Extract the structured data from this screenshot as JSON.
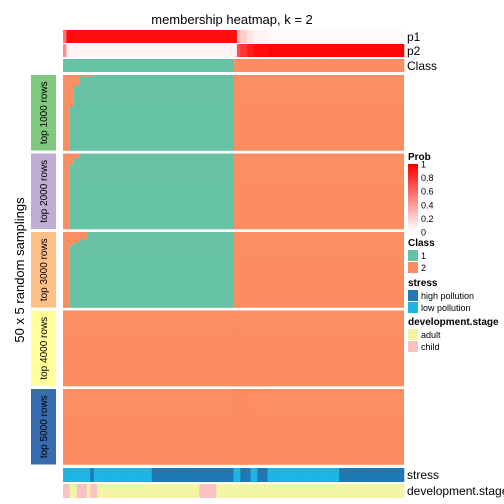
{
  "chart_data": {
    "type": "heatmap",
    "title": "membership heatmap, k = 2",
    "ylabel": "50 x 5 random samplings",
    "row_groups": [
      {
        "label": "top 1000 rows",
        "color": "#7FC97F",
        "switch": [
          0.09,
          0.05,
          0.05,
          0.05,
          0.05,
          0.05,
          0.05,
          0.03,
          0.03,
          0.03,
          0.03,
          0.03,
          0.03,
          0.03,
          0.03,
          0.03,
          0.03,
          0.03,
          0.03,
          0.03,
          0.03,
          0.02,
          0.02,
          0.02,
          0.02,
          0.02,
          0.02,
          0.02,
          0.02,
          0.02,
          0.02,
          0.02,
          0.02,
          0.02,
          0.02,
          0.02,
          0.02,
          0.02,
          0.02,
          0.02,
          0.02,
          0.02,
          0.02,
          0.02,
          0.02,
          0.02,
          0.02,
          0.02,
          0.02,
          0.02
        ]
      },
      {
        "label": "top 2000 rows",
        "color": "#BEAED4",
        "switch": [
          0.05,
          0.05,
          0.05,
          0.03,
          0.03,
          0.03,
          0.03,
          0.02,
          0.02,
          0.02,
          0.02,
          0.02,
          0.02,
          0.02,
          0.02,
          0.02,
          0.02,
          0.02,
          0.02,
          0.02,
          0.02,
          0.02,
          0.02,
          0.02,
          0.02,
          0.02,
          0.02,
          0.02,
          0.02,
          0.02,
          0.02,
          0.02,
          0.02,
          0.02,
          0.02,
          0.02,
          0.02,
          0.02,
          0.02,
          0.02,
          0.02,
          0.02,
          0.02,
          0.02,
          0.02,
          0.02,
          0.02,
          0.02,
          0.02,
          0.02
        ]
      },
      {
        "label": "top 3000 rows",
        "color": "#FDC086",
        "switch": [
          0.07,
          0.07,
          0.07,
          0.07,
          0.07,
          0.05,
          0.05,
          0.03,
          0.03,
          0.02,
          0.02,
          0.02,
          0.02,
          0.02,
          0.02,
          0.02,
          0.02,
          0.02,
          0.02,
          0.02,
          0.02,
          0.02,
          0.02,
          0.02,
          0.02,
          0.02,
          0.02,
          0.02,
          0.02,
          0.02,
          0.02,
          0.02,
          0.02,
          0.02,
          0.02,
          0.02,
          0.02,
          0.02,
          0.02,
          0.02,
          0.02,
          0.02,
          0.02,
          0.02,
          0.02,
          0.02,
          0.02,
          0.02,
          0.02,
          0.02
        ]
      },
      {
        "label": "top 4000 rows",
        "color": "#FFFF99",
        "switch": [
          0.5,
          0.5,
          0.5,
          0.5,
          0.5,
          0.5,
          0.5,
          0.51,
          0.51,
          0.51,
          0.51,
          0.51,
          0.51,
          0.51,
          0.51,
          0.51,
          0.51,
          0.51,
          0.51,
          0.51,
          0.51,
          0.51,
          0.51,
          0.51,
          0.53,
          0.53,
          0.53,
          0.53,
          0.53,
          0.53,
          0.53,
          0.53,
          0.53,
          0.53,
          0.55,
          0.55,
          0.55,
          0.55,
          0.55,
          0.55,
          0.55,
          0.55,
          0.55,
          0.57,
          0.57,
          0.57,
          0.57,
          0.57,
          0.57,
          0.6
        ]
      },
      {
        "label": "top 5000 rows",
        "color": "#386CB0",
        "switch": [
          0.55,
          0.55,
          0.55,
          0.55,
          0.55,
          0.55,
          0.55,
          0.55,
          0.55,
          0.55,
          0.55,
          0.55,
          0.55,
          0.55,
          0.55,
          0.55,
          0.55,
          0.55,
          0.55,
          0.55,
          0.55,
          0.55,
          0.55,
          0.55,
          0.55,
          0.55,
          0.55,
          0.55,
          0.55,
          0.55,
          0.55,
          0.55,
          0.55,
          0.55,
          0.55,
          0.55,
          0.55,
          0.55,
          0.55,
          0.55,
          0.55,
          0.55,
          0.55,
          0.55,
          0.55,
          0.55,
          0.55,
          0.55,
          0.55,
          0.55
        ]
      }
    ],
    "top_annotations": [
      "p1",
      "p2",
      "Class"
    ],
    "bottom_annotations": [
      "stress",
      "development.stage"
    ],
    "p1": [
      0.55,
      0.95,
      0.95,
      0.95,
      0.95,
      0.95,
      0.95,
      0.95,
      0.95,
      0.95,
      0.95,
      0.95,
      0.95,
      0.95,
      0.95,
      0.95,
      0.95,
      0.95,
      0.95,
      0.95,
      0.95,
      0.95,
      0.95,
      0.95,
      0.95,
      0.95,
      0.95,
      0.95,
      0.95,
      0.95,
      0.95,
      0.95,
      0.95,
      0.95,
      0.95,
      0.95,
      0.95,
      0.95,
      0.95,
      0.95,
      0.95,
      0.95,
      0.95,
      0.95,
      0.95,
      0.95,
      0.95,
      0.95,
      0.95,
      0.95,
      0.95,
      0.3,
      0.2,
      0.2,
      0.1,
      0.1,
      0.05,
      0.05,
      0.05,
      0.05,
      0.02,
      0.02,
      0.02,
      0.02,
      0.02,
      0.02,
      0.02,
      0.02,
      0.02,
      0.02,
      0.02,
      0.02,
      0.02,
      0.02,
      0.02,
      0.02,
      0.02,
      0.02,
      0.02,
      0.02,
      0.02,
      0.02,
      0.02,
      0.02,
      0.02,
      0.02,
      0.02,
      0.02,
      0.02,
      0.02,
      0.02,
      0.02,
      0.02,
      0.02,
      0.02,
      0.02,
      0.02,
      0.02,
      0.02,
      0.02
    ],
    "classes": [
      1,
      1,
      1,
      1,
      1,
      1,
      1,
      1,
      1,
      1,
      1,
      1,
      1,
      1,
      1,
      1,
      1,
      1,
      1,
      1,
      1,
      1,
      1,
      1,
      1,
      1,
      1,
      1,
      1,
      1,
      1,
      1,
      1,
      1,
      1,
      1,
      1,
      1,
      1,
      1,
      1,
      1,
      1,
      1,
      1,
      1,
      1,
      1,
      1,
      1,
      2,
      2,
      2,
      2,
      2,
      2,
      2,
      2,
      2,
      2,
      2,
      2,
      2,
      2,
      2,
      2,
      2,
      2,
      2,
      2,
      2,
      2,
      2,
      2,
      2,
      2,
      2,
      2,
      2,
      2,
      2,
      2,
      2,
      2,
      2,
      2,
      2,
      2,
      2,
      2,
      2,
      2,
      2,
      2,
      2,
      2,
      2,
      2,
      2,
      2
    ],
    "stress": [
      "low",
      "low",
      "low",
      "low",
      "low",
      "low",
      "low",
      "low",
      "high",
      "low",
      "low",
      "low",
      "low",
      "low",
      "low",
      "low",
      "low",
      "low",
      "low",
      "low",
      "low",
      "low",
      "low",
      "low",
      "low",
      "low",
      "high",
      "high",
      "high",
      "high",
      "high",
      "high",
      "high",
      "high",
      "high",
      "high",
      "high",
      "high",
      "high",
      "high",
      "high",
      "high",
      "high",
      "high",
      "high",
      "high",
      "high",
      "high",
      "high",
      "high",
      "low",
      "low",
      "high",
      "high",
      "high",
      "low",
      "low",
      "high",
      "high",
      "high",
      "low",
      "low",
      "low",
      "low",
      "low",
      "low",
      "low",
      "low",
      "low",
      "low",
      "low",
      "low",
      "low",
      "low",
      "low",
      "low",
      "low",
      "low",
      "low",
      "low",
      "low",
      "high",
      "high",
      "high",
      "high",
      "high",
      "high",
      "high",
      "high",
      "high",
      "high",
      "high",
      "high",
      "high",
      "high",
      "high",
      "high",
      "high",
      "high",
      "high"
    ],
    "development_stage": [
      "child",
      "child",
      "adult",
      "adult",
      "child",
      "child",
      "child",
      "adult",
      "child",
      "child",
      "adult",
      "adult",
      "adult",
      "adult",
      "adult",
      "adult",
      "adult",
      "adult",
      "adult",
      "adult",
      "adult",
      "adult",
      "adult",
      "adult",
      "adult",
      "adult",
      "adult",
      "adult",
      "adult",
      "adult",
      "adult",
      "adult",
      "adult",
      "adult",
      "adult",
      "adult",
      "adult",
      "adult",
      "adult",
      "adult",
      "child",
      "child",
      "child",
      "child",
      "child",
      "adult",
      "adult",
      "adult",
      "adult",
      "adult",
      "adult",
      "adult",
      "adult",
      "adult",
      "adult",
      "adult",
      "adult",
      "adult",
      "adult",
      "adult",
      "adult",
      "adult",
      "adult",
      "adult",
      "adult",
      "adult",
      "adult",
      "adult",
      "adult",
      "adult",
      "adult",
      "adult",
      "adult",
      "adult",
      "adult",
      "adult",
      "adult",
      "adult",
      "adult",
      "adult",
      "adult",
      "adult",
      "adult",
      "adult",
      "adult",
      "adult",
      "adult",
      "adult",
      "adult",
      "adult",
      "adult",
      "adult",
      "adult",
      "adult",
      "adult",
      "adult",
      "adult",
      "adult",
      "adult",
      "adult"
    ],
    "legends": {
      "prob": {
        "title": "Prob",
        "ticks": [
          "1",
          "0.8",
          "0.6",
          "0.4",
          "0.2",
          "0"
        ]
      },
      "class": {
        "title": "Class",
        "items": [
          {
            "label": "1",
            "color": "#66C2A5"
          },
          {
            "label": "2",
            "color": "#FC8D62"
          }
        ]
      },
      "stress": {
        "title": "stress",
        "items": [
          {
            "label": "high pollution",
            "color": "#1F78B4"
          },
          {
            "label": "low pollution",
            "color": "#1EB4E6"
          }
        ]
      },
      "development": {
        "title": "development.stage",
        "items": [
          {
            "label": "adult",
            "color": "#F4F4A6"
          },
          {
            "label": "child",
            "color": "#FBC2C3"
          }
        ]
      }
    }
  }
}
